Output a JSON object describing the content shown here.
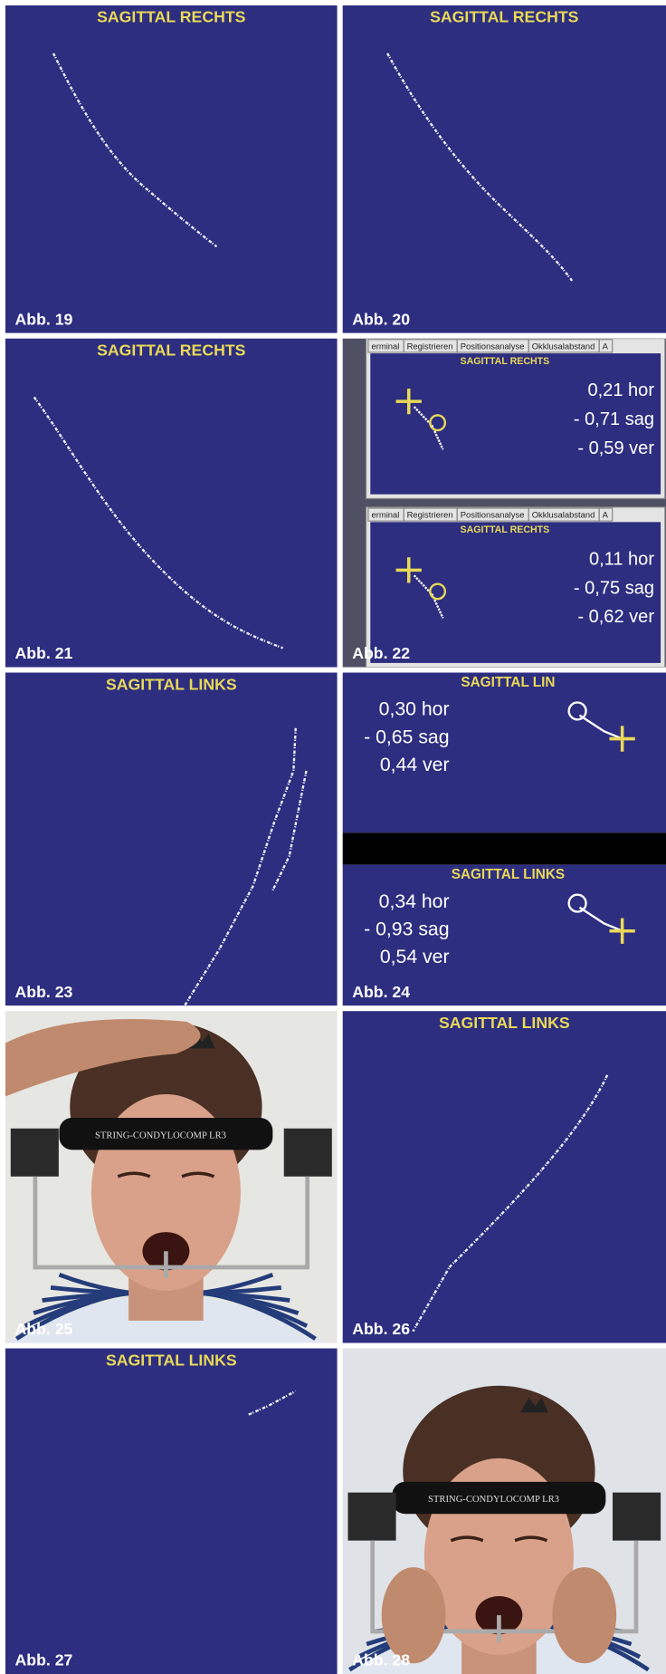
{
  "panels": [
    {
      "label": "Abb. 19",
      "title": "SAGITTAL RECHTS"
    },
    {
      "label": "Abb. 20",
      "title": "SAGITTAL RECHTS"
    },
    {
      "label": "Abb. 21",
      "title": "SAGITTAL RECHTS"
    },
    {
      "label": "Abb. 22",
      "screens": [
        {
          "tabs": [
            "erminal",
            "Registrieren",
            "Positionsanalyse",
            "Okklusalabstand",
            "A"
          ],
          "title": "SAGITTAL RECHTS",
          "readings": [
            "0,21 hor",
            "- 0,71 sag",
            "- 0,59 ver"
          ]
        },
        {
          "tabs": [
            "erminal",
            "Registrieren",
            "Positionsanalyse",
            "Okklusalabstand",
            "A"
          ],
          "title": "SAGITTAL RECHTS",
          "readings": [
            "0,11 hor",
            "- 0,75 sag",
            "- 0,62 ver"
          ]
        }
      ]
    },
    {
      "label": "Abb. 23",
      "title": "SAGITTAL LINKS"
    },
    {
      "label": "Abb. 24",
      "screens": [
        {
          "title": "SAGITTAL LIN",
          "readings": [
            "0,30 hor",
            "- 0,65 sag",
            "0,44 ver"
          ]
        },
        {
          "title": "SAGITTAL LINKS",
          "readings": [
            "0,34 hor",
            "- 0,93 sag",
            "0,54 ver"
          ]
        }
      ]
    },
    {
      "label": "Abb. 25",
      "headband": "STRING-CONDYLOCOMP LR3"
    },
    {
      "label": "Abb. 26",
      "title": "SAGITTAL LINKS"
    },
    {
      "label": "Abb. 27",
      "title": "SAGITTAL LINKS"
    },
    {
      "label": "Abb. 28",
      "headband": "STRING-CONDYLOCOMP LR3"
    }
  ]
}
